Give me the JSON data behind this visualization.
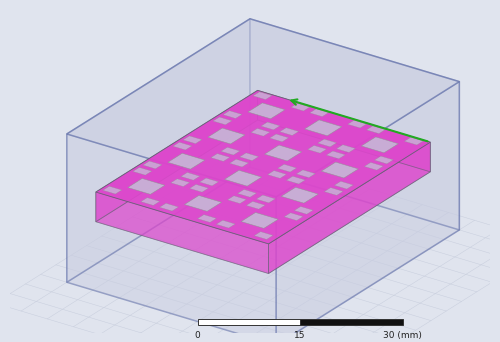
{
  "bg_color": "#e0e4ee",
  "grid_color": "#c8cedd",
  "substrate_fill": "#c8cce0",
  "substrate_alpha": 0.55,
  "substrate_edge": "#5060a0",
  "substrate_lw": 1.2,
  "mtm_fill": "#dd44cc",
  "mtm_alpha": 0.95,
  "mtm_edge": "#606070",
  "mtm_lw": 0.7,
  "cell_edge": "#909090",
  "cell_fill": "#c4c6d8",
  "axis_green": "#22aa22",
  "axis_red": "#dd2222",
  "axis_blue": "#1133cc",
  "sb_white": "#ffffff",
  "sb_black": "#111111",
  "sb_edge": "#333333",
  "sb_labels": [
    "0",
    "15",
    "30 (mm)"
  ],
  "figure_width": 5.0,
  "figure_height": 3.42,
  "dpi": 100
}
